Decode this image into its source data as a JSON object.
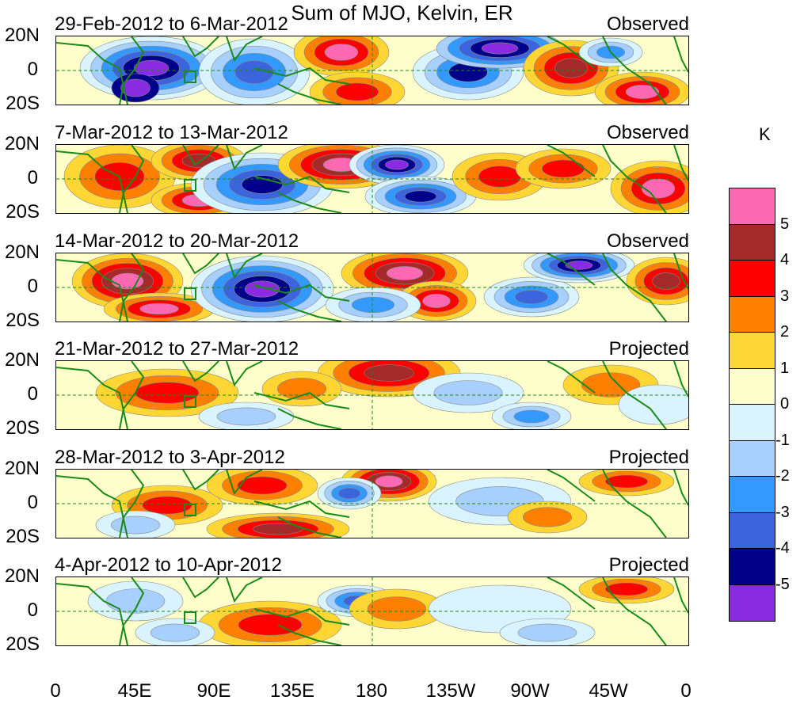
{
  "title": "Sum of MJO, Kelvin, ER",
  "panels": [
    {
      "date_range": "29-Feb-2012 to 6-Mar-2012",
      "status": "Observed"
    },
    {
      "date_range": "7-Mar-2012 to 13-Mar-2012",
      "status": "Observed"
    },
    {
      "date_range": "14-Mar-2012 to 20-Mar-2012",
      "status": "Observed"
    },
    {
      "date_range": "21-Mar-2012 to 27-Mar-2012",
      "status": "Projected"
    },
    {
      "date_range": "28-Mar-2012 to 3-Apr-2012",
      "status": "Projected"
    },
    {
      "date_range": "4-Apr-2012 to 10-Apr-2012",
      "status": "Projected"
    }
  ],
  "lat_labels": [
    "20N",
    "0",
    "20S"
  ],
  "lon_labels": [
    "0",
    "45E",
    "90E",
    "135E",
    "180",
    "135W",
    "90W",
    "45W",
    "0"
  ],
  "colorbar": {
    "unit": "K",
    "levels": [
      "5",
      "4",
      "3",
      "2",
      "1",
      "0",
      "-1",
      "-2",
      "-3",
      "-4",
      "-5"
    ],
    "colors": [
      "#ff69b4",
      "#a52a2a",
      "#ff0000",
      "#ff7f00",
      "#ffd633",
      "#ffffcc",
      "#d9f4ff",
      "#a8d0ff",
      "#3399ff",
      "#3c64dc",
      "#00008b",
      "#8a2be2"
    ]
  },
  "colors": {
    "coastline": "#1a8a1a",
    "grid": "#1a8a1a"
  }
}
